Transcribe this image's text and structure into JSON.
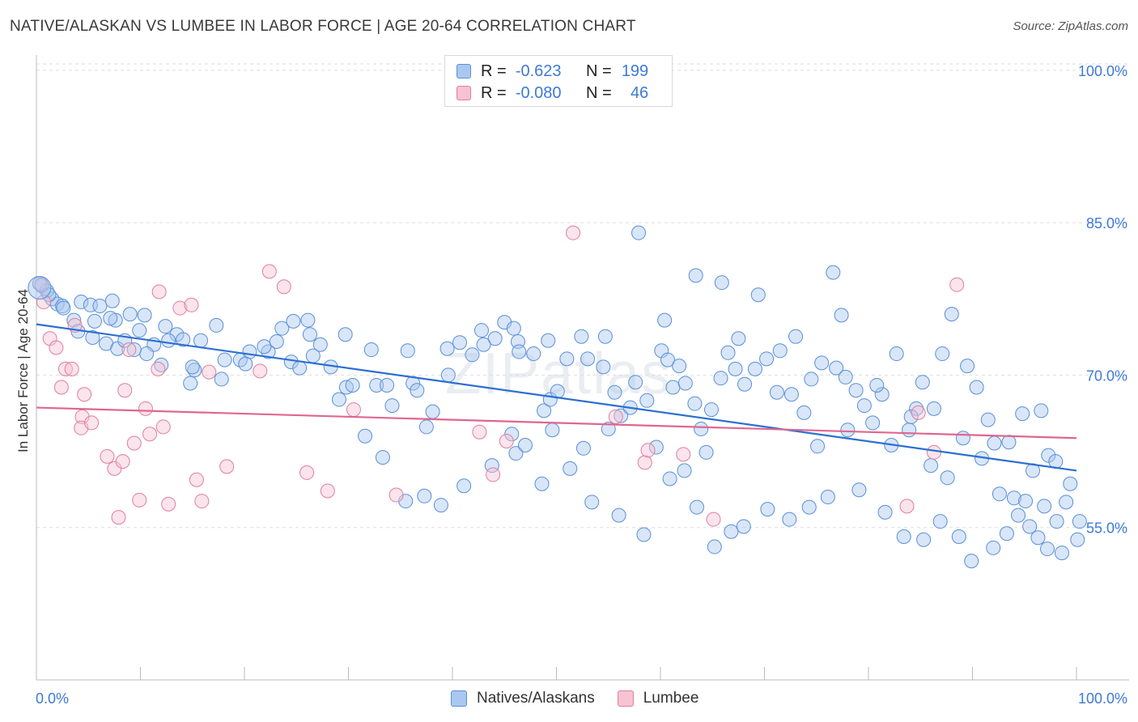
{
  "title": "NATIVE/ALASKAN VS LUMBEE IN LABOR FORCE | AGE 20-64 CORRELATION CHART",
  "source": "Source: ZipAtlas.com",
  "watermark": {
    "zip": "ZIP",
    "atlas": "atlas"
  },
  "legend": {
    "r_label": "R =",
    "n_label": "N =",
    "rows": [
      {
        "r": "-0.623",
        "n": "199",
        "color": "#a9c8f0",
        "border": "#5a8fd8"
      },
      {
        "r": "-0.080",
        "n": "46",
        "color": "#f7c3d2",
        "border": "#e07e9e"
      }
    ]
  },
  "bottom_legend": [
    "Natives/Alaskans",
    "Lumbee"
  ],
  "chart_data": {
    "type": "scatter",
    "title": "NATIVE/ALASKAN VS LUMBEE IN LABOR FORCE | AGE 20-64 CORRELATION CHART",
    "xlabel": "",
    "ylabel": "In Labor Force | Age 20-64",
    "xlim": [
      0,
      100
    ],
    "ylim": [
      40,
      101.5
    ],
    "x_tick_labels": [
      "0.0%",
      "100.0%"
    ],
    "y_ticks": [
      55,
      70,
      85,
      100
    ],
    "y_tick_labels": [
      "55.0%",
      "70.0%",
      "85.0%",
      "100.0%"
    ],
    "grid": "horizontal dashed",
    "legend_position": "top-center",
    "series": [
      {
        "name": "Natives/Alaskans",
        "color": "#a9c8f0",
        "stroke": "#5a8fd8",
        "trend": {
          "x": [
            0,
            100
          ],
          "y": [
            75.0,
            60.6
          ],
          "color": "#2c6fd1"
        },
        "points": [
          [
            0.5,
            78.8
          ],
          [
            1.5,
            77.5
          ],
          [
            2,
            77.0
          ],
          [
            2.5,
            76.8
          ],
          [
            4.3,
            77.2
          ],
          [
            5.2,
            76.9
          ],
          [
            6.1,
            76.8
          ],
          [
            7.3,
            77.3
          ],
          [
            9.0,
            76.0
          ],
          [
            10.4,
            75.9
          ],
          [
            1.0,
            78.3
          ],
          [
            3.6,
            75.4
          ],
          [
            5.6,
            75.3
          ],
          [
            7.6,
            75.4
          ],
          [
            9.9,
            74.4
          ],
          [
            12.4,
            74.8
          ],
          [
            11.3,
            73.0
          ],
          [
            13.5,
            74.0
          ],
          [
            14.1,
            73.5
          ],
          [
            15.8,
            73.4
          ],
          [
            17.3,
            74.9
          ],
          [
            5.4,
            73.7
          ],
          [
            6.7,
            73.1
          ],
          [
            7.8,
            72.6
          ],
          [
            8.5,
            73.4
          ],
          [
            10.6,
            72.1
          ],
          [
            12.7,
            73.4
          ],
          [
            15.2,
            70.5
          ],
          [
            14.8,
            69.2
          ],
          [
            18.1,
            71.5
          ],
          [
            19.6,
            71.5
          ],
          [
            22.3,
            72.3
          ],
          [
            24.5,
            71.3
          ],
          [
            25.3,
            70.7
          ],
          [
            26.6,
            71.9
          ],
          [
            28.3,
            70.8
          ],
          [
            29.8,
            68.8
          ],
          [
            30.4,
            69.0
          ],
          [
            32.7,
            69.0
          ],
          [
            33.7,
            69.0
          ],
          [
            34.2,
            67.0
          ],
          [
            36.2,
            69.2
          ],
          [
            36.6,
            68.5
          ],
          [
            37.5,
            64.9
          ],
          [
            38.1,
            66.4
          ],
          [
            39.6,
            70.0
          ],
          [
            40.7,
            73.2
          ],
          [
            41.9,
            72.0
          ],
          [
            42.8,
            74.4
          ],
          [
            44.1,
            73.6
          ],
          [
            45.0,
            75.2
          ],
          [
            45.9,
            74.6
          ],
          [
            46.3,
            73.3
          ],
          [
            47.8,
            72.1
          ],
          [
            48.8,
            66.5
          ],
          [
            49.4,
            67.6
          ],
          [
            50.1,
            68.4
          ],
          [
            51.0,
            71.6
          ],
          [
            52.4,
            73.8
          ],
          [
            53.0,
            71.6
          ],
          [
            54.5,
            70.8
          ],
          [
            55.6,
            68.3
          ],
          [
            56.2,
            66.0
          ],
          [
            57.1,
            66.8
          ],
          [
            57.6,
            69.3
          ],
          [
            58.7,
            67.5
          ],
          [
            60.1,
            72.4
          ],
          [
            60.7,
            71.5
          ],
          [
            61.2,
            68.8
          ],
          [
            62.4,
            69.2
          ],
          [
            63.3,
            67.2
          ],
          [
            63.9,
            64.7
          ],
          [
            64.9,
            66.6
          ],
          [
            65.8,
            69.7
          ],
          [
            66.5,
            72.2
          ],
          [
            67.2,
            70.6
          ],
          [
            68.1,
            69.1
          ],
          [
            69.1,
            70.6
          ],
          [
            70.2,
            71.6
          ],
          [
            71.5,
            72.4
          ],
          [
            72.6,
            68.1
          ],
          [
            73.8,
            66.3
          ],
          [
            74.5,
            69.6
          ],
          [
            75.5,
            71.2
          ],
          [
            76.9,
            70.7
          ],
          [
            77.8,
            69.8
          ],
          [
            78.8,
            68.5
          ],
          [
            79.6,
            67.0
          ],
          [
            80.4,
            65.3
          ],
          [
            81.3,
            68.1
          ],
          [
            82.7,
            72.1
          ],
          [
            83.9,
            64.6
          ],
          [
            84.6,
            66.7
          ],
          [
            85.2,
            69.3
          ],
          [
            86.3,
            66.7
          ],
          [
            87.1,
            72.1
          ],
          [
            88.0,
            76.0
          ],
          [
            89.5,
            70.9
          ],
          [
            90.4,
            68.8
          ],
          [
            91.5,
            65.6
          ],
          [
            92.1,
            63.3
          ],
          [
            93.5,
            63.4
          ],
          [
            94.8,
            66.2
          ],
          [
            95.8,
            60.6
          ],
          [
            96.6,
            66.5
          ],
          [
            97.3,
            62.1
          ],
          [
            98.0,
            61.5
          ],
          [
            99.4,
            59.3
          ],
          [
            100.3,
            55.6
          ],
          [
            20.5,
            72.3
          ],
          [
            21.9,
            72.8
          ],
          [
            23.6,
            74.6
          ],
          [
            24.7,
            75.3
          ],
          [
            26.1,
            75.4
          ],
          [
            27.3,
            73.0
          ],
          [
            29.1,
            67.6
          ],
          [
            31.6,
            64.0
          ],
          [
            33.3,
            61.9
          ],
          [
            35.5,
            57.6
          ],
          [
            37.3,
            58.1
          ],
          [
            38.9,
            57.2
          ],
          [
            41.1,
            59.1
          ],
          [
            43.8,
            61.1
          ],
          [
            46.1,
            62.3
          ],
          [
            48.6,
            59.3
          ],
          [
            51.3,
            60.8
          ],
          [
            53.4,
            57.5
          ],
          [
            56.0,
            56.2
          ],
          [
            58.4,
            54.3
          ],
          [
            60.9,
            59.8
          ],
          [
            63.5,
            57.0
          ],
          [
            65.2,
            53.1
          ],
          [
            66.8,
            54.6
          ],
          [
            68.0,
            55.1
          ],
          [
            70.3,
            56.8
          ],
          [
            72.4,
            55.8
          ],
          [
            74.3,
            57.0
          ],
          [
            76.1,
            58.0
          ],
          [
            79.1,
            58.7
          ],
          [
            81.6,
            56.5
          ],
          [
            83.4,
            54.1
          ],
          [
            85.3,
            53.8
          ],
          [
            86.9,
            55.6
          ],
          [
            88.7,
            54.1
          ],
          [
            89.9,
            51.7
          ],
          [
            92.0,
            53.0
          ],
          [
            93.3,
            54.4
          ],
          [
            94.4,
            56.2
          ],
          [
            95.5,
            55.1
          ],
          [
            96.3,
            54.0
          ],
          [
            97.2,
            52.9
          ],
          [
            98.6,
            52.5
          ],
          [
            57.9,
            84.0
          ],
          [
            76.6,
            80.1
          ],
          [
            63.4,
            79.8
          ],
          [
            65.9,
            79.1
          ],
          [
            69.4,
            77.9
          ],
          [
            77.4,
            75.9
          ],
          [
            60.4,
            75.4
          ],
          [
            54.7,
            73.8
          ],
          [
            49.2,
            73.4
          ],
          [
            46.4,
            72.3
          ],
          [
            43.0,
            73.0
          ],
          [
            39.5,
            72.6
          ],
          [
            35.7,
            72.4
          ],
          [
            32.2,
            72.5
          ],
          [
            29.7,
            74.0
          ],
          [
            26.3,
            74.0
          ],
          [
            23.1,
            73.3
          ],
          [
            20.1,
            71.1
          ],
          [
            17.8,
            69.6
          ],
          [
            15.0,
            70.8
          ],
          [
            12.0,
            71.0
          ],
          [
            9.4,
            72.5
          ],
          [
            7.1,
            75.6
          ],
          [
            4.0,
            74.3
          ],
          [
            2.6,
            76.6
          ],
          [
            1.2,
            77.9
          ],
          [
            0.3,
            79.0
          ],
          [
            61.8,
            70.9
          ],
          [
            67.5,
            73.6
          ],
          [
            71.2,
            68.3
          ],
          [
            73.0,
            73.8
          ],
          [
            75.1,
            63.0
          ],
          [
            78.0,
            64.6
          ],
          [
            80.8,
            69.0
          ],
          [
            82.2,
            63.1
          ],
          [
            84.1,
            65.9
          ],
          [
            86.0,
            61.1
          ],
          [
            87.6,
            59.9
          ],
          [
            89.1,
            63.8
          ],
          [
            90.9,
            61.8
          ],
          [
            92.6,
            58.3
          ],
          [
            94.0,
            57.9
          ],
          [
            95.1,
            57.6
          ],
          [
            96.9,
            57.1
          ],
          [
            98.1,
            55.6
          ],
          [
            99.0,
            57.5
          ],
          [
            100.1,
            53.8
          ],
          [
            45.7,
            64.2
          ],
          [
            47.0,
            63.1
          ],
          [
            49.6,
            64.6
          ],
          [
            52.6,
            62.8
          ],
          [
            55.0,
            64.7
          ],
          [
            59.6,
            62.9
          ],
          [
            62.3,
            60.6
          ],
          [
            64.4,
            62.4
          ]
        ]
      },
      {
        "name": "Lumbee",
        "color": "#f7c3d2",
        "stroke": "#e07e9e",
        "trend": {
          "x": [
            0,
            100
          ],
          "y": [
            66.8,
            63.8
          ],
          "color": "#e0668f"
        },
        "points": [
          [
            0.5,
            78.9
          ],
          [
            0.7,
            77.2
          ],
          [
            1.3,
            73.6
          ],
          [
            1.9,
            72.7
          ],
          [
            2.4,
            68.8
          ],
          [
            2.8,
            70.6
          ],
          [
            3.4,
            70.6
          ],
          [
            3.7,
            74.9
          ],
          [
            4.6,
            68.1
          ],
          [
            4.4,
            65.9
          ],
          [
            4.3,
            64.8
          ],
          [
            5.3,
            65.3
          ],
          [
            6.8,
            62.0
          ],
          [
            7.5,
            60.8
          ],
          [
            7.9,
            56.0
          ],
          [
            8.3,
            61.5
          ],
          [
            8.5,
            68.5
          ],
          [
            8.9,
            72.5
          ],
          [
            9.4,
            63.3
          ],
          [
            9.9,
            57.7
          ],
          [
            10.5,
            66.7
          ],
          [
            10.9,
            64.2
          ],
          [
            11.7,
            70.6
          ],
          [
            11.8,
            78.2
          ],
          [
            12.2,
            64.9
          ],
          [
            12.7,
            57.3
          ],
          [
            13.8,
            76.6
          ],
          [
            14.9,
            76.9
          ],
          [
            15.4,
            59.7
          ],
          [
            15.9,
            57.6
          ],
          [
            16.6,
            70.3
          ],
          [
            18.3,
            61.0
          ],
          [
            21.5,
            70.4
          ],
          [
            22.4,
            80.2
          ],
          [
            23.8,
            78.7
          ],
          [
            26.0,
            60.4
          ],
          [
            28.0,
            58.6
          ],
          [
            30.5,
            66.6
          ],
          [
            34.6,
            58.2
          ],
          [
            42.6,
            64.4
          ],
          [
            43.9,
            60.2
          ],
          [
            45.2,
            63.5
          ],
          [
            51.6,
            84.0
          ],
          [
            55.7,
            65.9
          ],
          [
            58.5,
            61.4
          ],
          [
            58.8,
            62.6
          ],
          [
            62.2,
            62.2
          ],
          [
            65.1,
            55.8
          ],
          [
            83.7,
            57.1
          ],
          [
            84.8,
            66.3
          ],
          [
            86.3,
            62.4
          ],
          [
            88.5,
            78.9
          ]
        ]
      }
    ]
  }
}
